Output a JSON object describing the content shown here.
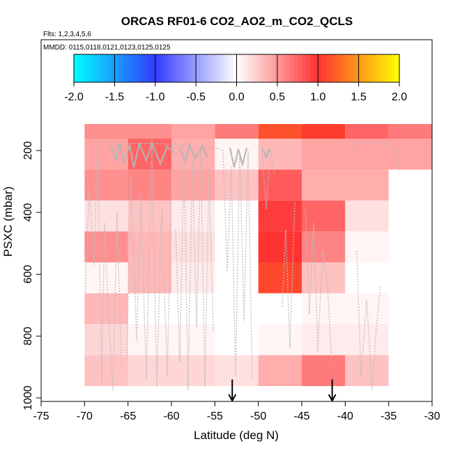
{
  "chart_data": {
    "type": "heatmap",
    "title": "ORCAS RF01-6 CO2_AO2_m_CO2_QCLS",
    "subtitle_flights": "Flts: 1,2,3,4,5,6",
    "subtitle_dates": "MMDD: 0115,0118,0121,0123,0125,0125",
    "xlabel": "Latitude (deg N)",
    "ylabel": "PSXC (mbar)",
    "xlim": [
      -75,
      -30
    ],
    "ylim": [
      1030,
      100
    ],
    "x_ticks": [
      -75,
      -70,
      -65,
      -60,
      -55,
      -50,
      -45,
      -40,
      -35,
      -30
    ],
    "y_ticks": [
      200,
      400,
      600,
      800,
      1000
    ],
    "colorbar": {
      "range": [
        -2.0,
        2.0
      ],
      "ticks": [
        "-2.0",
        "-1.5",
        "-1.0",
        "-0.5",
        "0.0",
        "0.5",
        "1.0",
        "1.5",
        "2.0"
      ]
    },
    "grid": {
      "x_edges": [
        -70,
        -65,
        -60,
        -55,
        -50,
        -45,
        -40,
        -35,
        -30
      ],
      "p_edges": [
        100,
        200,
        300,
        400,
        500,
        600,
        700,
        800,
        900,
        1000
      ],
      "values": [
        [
          0.55,
          0.55,
          0.45,
          0.65,
          1.15,
          1.05,
          0.75,
          0.65
        ],
        [
          0.45,
          0.75,
          0.4,
          0.05,
          0.35,
          0.45,
          0.45,
          0.45
        ],
        [
          0.55,
          0.6,
          0.45,
          0.3,
          0.8,
          0.4,
          0.4,
          null
        ],
        [
          0.15,
          0.3,
          0.1,
          0.0,
          0.95,
          0.75,
          0.15,
          null
        ],
        [
          0.55,
          0.35,
          0.15,
          0.0,
          1.0,
          0.6,
          0.05,
          null
        ],
        [
          0.05,
          0.35,
          0.1,
          0.0,
          1.1,
          0.3,
          0.0,
          null
        ],
        [
          0.35,
          0.0,
          0.0,
          0.0,
          0.0,
          0.05,
          0.05,
          null
        ],
        [
          0.2,
          0.05,
          0.05,
          0.0,
          0.05,
          0.1,
          0.1,
          null
        ],
        [
          0.3,
          0.2,
          0.2,
          0.15,
          0.4,
          0.65,
          0.3,
          null
        ]
      ]
    },
    "markers": [
      {
        "type": "arrow",
        "x": -53,
        "p_from": 965,
        "p_to": 1030
      },
      {
        "type": "arrow",
        "x": -41.5,
        "p_from": 965,
        "p_to": 1030
      }
    ]
  }
}
